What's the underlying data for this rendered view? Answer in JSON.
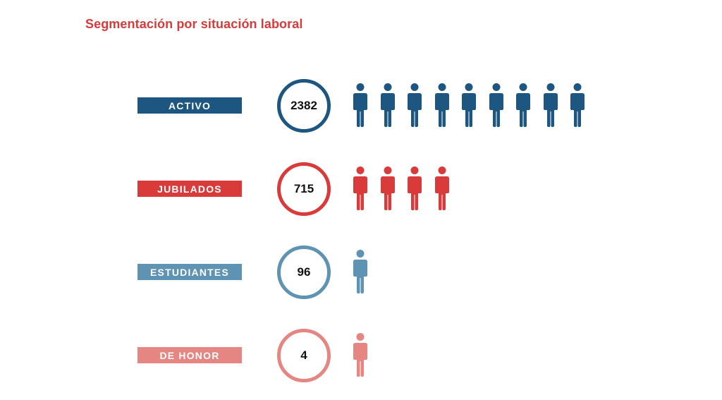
{
  "title": "Segmentación por situación laboral",
  "colors": {
    "title": "#d93a3a",
    "activo": "#1d5680",
    "jubilados": "#d93a3a",
    "estudiantes": "#5f93b3",
    "honor": "#e68682"
  },
  "chart_data": {
    "type": "pictograph",
    "title": "Segmentación por situación laboral",
    "categories": [
      "ACTIVO",
      "JUBILADOS",
      "ESTUDIANTES",
      "DE HONOR"
    ],
    "values": [
      2382,
      715,
      96,
      4
    ],
    "rows": [
      {
        "label": "ACTIVO",
        "value": 2382,
        "display": "2382",
        "icons": 9,
        "color": "#1d5680"
      },
      {
        "label": "JUBILADOS",
        "value": 715,
        "display": "715",
        "icons": 4,
        "color": "#d93a3a"
      },
      {
        "label": "ESTUDIANTES",
        "value": 96,
        "display": "96",
        "icons": 1,
        "color": "#5f93b3"
      },
      {
        "label": "DE HONOR",
        "value": 4,
        "display": "4",
        "icons": 1,
        "color": "#e68682"
      }
    ],
    "icon": "person-icon"
  }
}
